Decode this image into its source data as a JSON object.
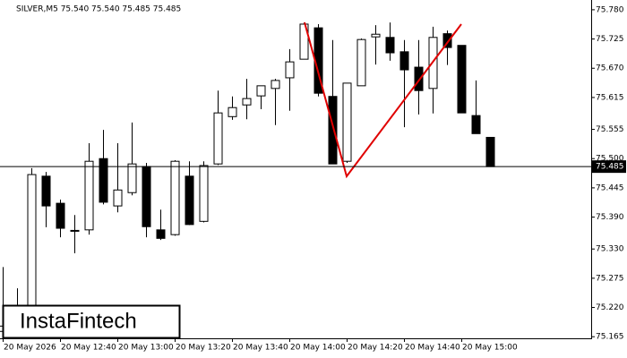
{
  "chart_data": {
    "type": "candlestick",
    "title": "SILVER,M5  75.540 75.540 75.485 75.485",
    "categories": [
      "20 May 2026",
      null,
      null,
      null,
      "20 May 12:40",
      null,
      null,
      null,
      "20 May 13:00",
      null,
      null,
      null,
      "20 May 13:20",
      null,
      null,
      null,
      "20 May 13:40",
      null,
      null,
      null,
      "20 May 14:00",
      null,
      null,
      null,
      "20 May 14:20",
      null,
      null,
      null,
      "20 May 14:40",
      null,
      null,
      null,
      "20 May 15:00",
      null,
      null
    ],
    "open": [
      75.175,
      75.17,
      75.165,
      75.467,
      75.416,
      75.365,
      75.366,
      75.5,
      75.411,
      75.436,
      75.485,
      75.366,
      75.357,
      75.467,
      75.382,
      75.49,
      75.579,
      75.601,
      75.618,
      75.632,
      75.652,
      75.687,
      75.746,
      75.617,
      75.495,
      75.637,
      75.729,
      75.728,
      75.701,
      75.672,
      75.632,
      75.735,
      75.713,
      75.581,
      75.54
    ],
    "high": [
      75.296,
      75.256,
      75.482,
      75.475,
      75.423,
      75.394,
      75.529,
      75.554,
      75.529,
      75.568,
      75.492,
      75.404,
      75.497,
      75.495,
      75.495,
      75.628,
      75.617,
      75.65,
      75.637,
      75.65,
      75.706,
      75.756,
      75.753,
      75.723,
      75.642,
      75.726,
      75.751,
      75.756,
      75.723,
      75.723,
      75.748,
      75.741,
      75.713,
      75.647,
      75.54
    ],
    "low": [
      75.162,
      75.162,
      75.162,
      75.371,
      75.352,
      75.322,
      75.357,
      75.414,
      75.399,
      75.431,
      75.352,
      75.347,
      75.355,
      75.375,
      75.38,
      75.488,
      75.573,
      75.574,
      75.593,
      75.563,
      75.59,
      75.687,
      75.617,
      75.49,
      75.492,
      75.637,
      75.677,
      75.684,
      75.559,
      75.583,
      75.585,
      75.676,
      75.586,
      75.547,
      75.485
    ],
    "close": [
      75.185,
      75.18,
      75.47,
      75.411,
      75.369,
      75.364,
      75.495,
      75.418,
      75.441,
      75.49,
      75.372,
      75.35,
      75.495,
      75.376,
      75.487,
      75.586,
      75.596,
      75.613,
      75.637,
      75.647,
      75.682,
      75.753,
      75.623,
      75.49,
      75.642,
      75.724,
      75.734,
      75.699,
      75.667,
      75.628,
      75.728,
      75.709,
      75.586,
      75.547,
      75.485
    ],
    "current_price": 75.485,
    "ylim": [
      75.162,
      75.795
    ],
    "yticks": [
      {
        "value": 75.78,
        "label": "75.780"
      },
      75.725,
      {
        "value": 75.67,
        "label": "75.670"
      },
      75.615,
      75.555,
      {
        "value": 75.5,
        "label": "75.500"
      },
      75.445,
      {
        "value": 75.39,
        "label": "75.390"
      },
      {
        "value": 75.33,
        "label": "75.330"
      },
      75.275,
      {
        "value": 75.22,
        "label": "75.220"
      },
      75.165
    ],
    "bull_color": "#ffffff",
    "bear_color": "#000000",
    "grid": false
  },
  "logo": "InstaFintech"
}
